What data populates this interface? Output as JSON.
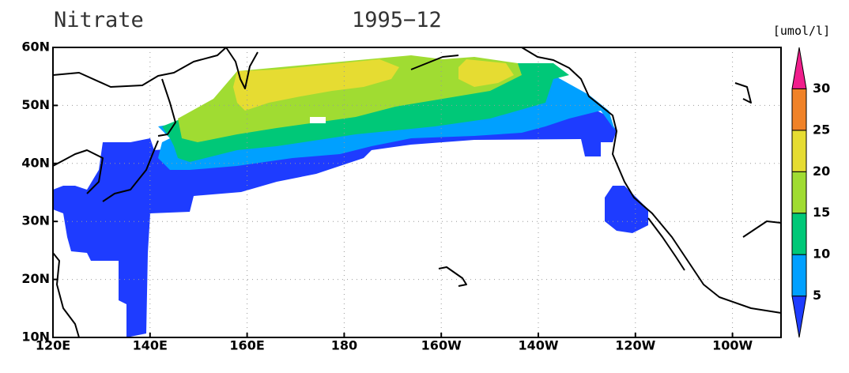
{
  "title": "Nitrate",
  "date": "1995−12",
  "unit": "[umol/l]",
  "lon_range": [
    120,
    270
  ],
  "lat_range": [
    10,
    60
  ],
  "lon_ticks": [
    {
      "value": 120,
      "label": "120E"
    },
    {
      "value": 140,
      "label": "140E"
    },
    {
      "value": 160,
      "label": "160E"
    },
    {
      "value": 180,
      "label": "180"
    },
    {
      "value": 200,
      "label": "160W"
    },
    {
      "value": 220,
      "label": "140W"
    },
    {
      "value": 240,
      "label": "120W"
    },
    {
      "value": 260,
      "label": "100W"
    }
  ],
  "lat_ticks": [
    {
      "value": 10,
      "label": "10N"
    },
    {
      "value": 20,
      "label": "20N"
    },
    {
      "value": 30,
      "label": "30N"
    },
    {
      "value": 40,
      "label": "40N"
    },
    {
      "value": 50,
      "label": "50N"
    },
    {
      "value": 60,
      "label": "60N"
    }
  ],
  "grid": true,
  "colorbar": {
    "levels": [
      5,
      10,
      15,
      20,
      25,
      30
    ],
    "colors": [
      "#1e3cff",
      "#00a0ff",
      "#00c878",
      "#a0dc32",
      "#e6dc32",
      "#f08228",
      "#f01e8c"
    ]
  }
}
